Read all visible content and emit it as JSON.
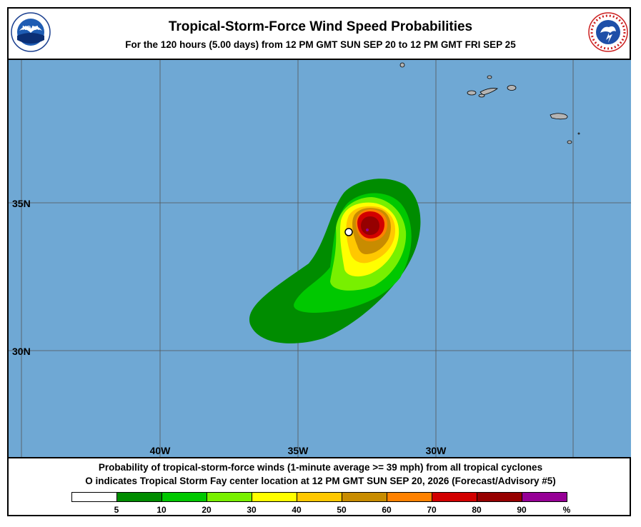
{
  "header": {
    "title": "Tropical-Storm-Force Wind Speed Probabilities",
    "subtitle": "For the 120 hours (5.00 days) from 12 PM GMT SUN SEP 20 to 12 PM GMT FRI SEP 25"
  },
  "logos": {
    "left": "NOAA",
    "right": "NATIONAL WEATHER SERVICE"
  },
  "map": {
    "ocean_color": "#6fa8d4",
    "land_color": "#b4b4b4",
    "longitude_labels": [
      "40W",
      "35W",
      "30W"
    ],
    "latitude_labels": [
      "35N",
      "30N"
    ],
    "storm_center": {
      "lon": "33W",
      "lat": "34N"
    }
  },
  "caption": {
    "line1": "Probability of tropical-storm-force winds (1-minute average >= 39 mph) from all tropical cyclones",
    "line2_prefix": "O",
    "line2": "indicates Tropical Storm Fay center location at 12 PM GMT SUN SEP 20, 2026 (Forecast/Advisory #5)"
  },
  "legend": {
    "colors": [
      "#ffffff",
      "#008c00",
      "#00c800",
      "#78f000",
      "#ffff00",
      "#ffc800",
      "#c88c00",
      "#ff8200",
      "#d20000",
      "#960000",
      "#960096"
    ],
    "labels": [
      "5",
      "10",
      "20",
      "30",
      "40",
      "50",
      "60",
      "70",
      "80",
      "90",
      "%"
    ]
  }
}
